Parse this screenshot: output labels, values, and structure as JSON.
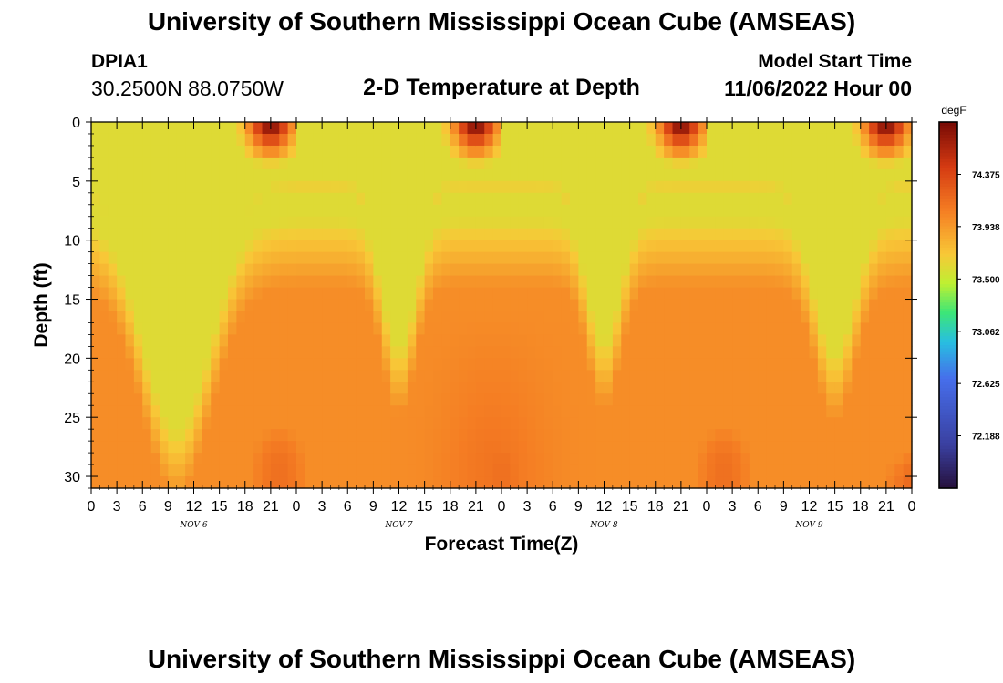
{
  "header": {
    "title": "University of Southern Mississippi Ocean Cube (AMSEAS)",
    "station_id": "DPIA1",
    "coordinates": "30.2500N  88.0750W",
    "subtitle": "2-D Temperature at Depth",
    "model_start_label": "Model Start Time",
    "model_start_value": "11/06/2022 Hour 00"
  },
  "footer": {
    "title": "University of Southern Mississippi Ocean Cube (AMSEAS)"
  },
  "chart_data": {
    "type": "heatmap",
    "title": "2-D Temperature at Depth",
    "xlabel": "Forecast Time(Z)",
    "ylabel": "Depth (ft)",
    "x_hours_range": [
      0,
      96
    ],
    "ylim": [
      0,
      31
    ],
    "y_ticks": [
      "0",
      "5",
      "10",
      "15",
      "20",
      "25",
      "30"
    ],
    "x_tick_labels": [
      "0",
      "3",
      "6",
      "9",
      "12",
      "15",
      "18",
      "21",
      "0",
      "3",
      "6",
      "9",
      "12",
      "15",
      "18",
      "21",
      "0",
      "3",
      "6",
      "9",
      "12",
      "15",
      "18",
      "21",
      "0",
      "3",
      "6",
      "9",
      "12",
      "15",
      "18",
      "21",
      "0"
    ],
    "date_labels": [
      "NOV  6",
      "NOV  7",
      "NOV  8",
      "NOV  9"
    ],
    "colorbar": {
      "unit": "degF",
      "min": 71.75,
      "max": 74.813,
      "tick_values": [
        "74.375",
        "73.938",
        "73.500",
        "73.062",
        "72.625",
        "72.188"
      ]
    }
  }
}
